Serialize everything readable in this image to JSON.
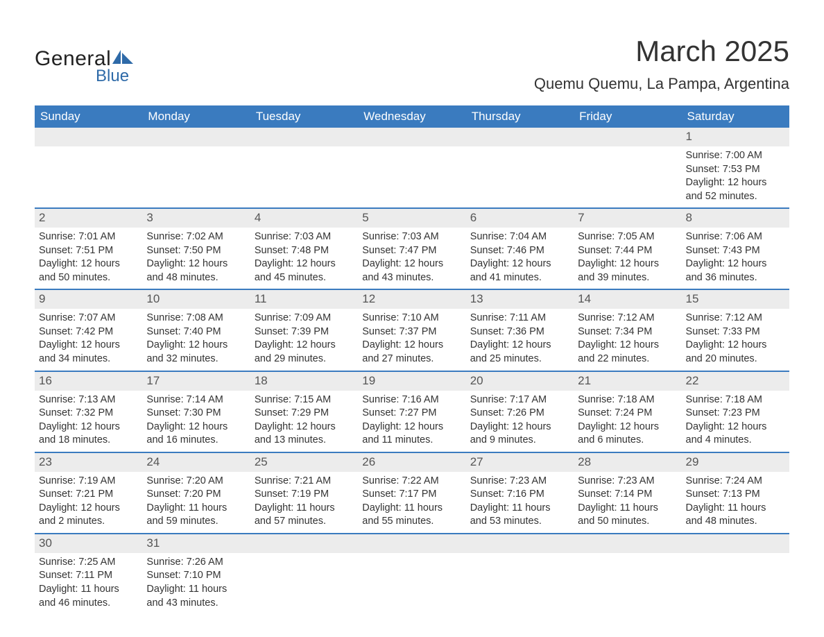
{
  "brand": {
    "general": "General",
    "blue": "Blue",
    "shape_color": "#2e6aa8"
  },
  "title": "March 2025",
  "location": "Quemu Quemu, La Pampa, Argentina",
  "colors": {
    "header_bg": "#3a7bbf",
    "header_text": "#ffffff",
    "daynum_bg": "#ececec",
    "border": "#3a7bbf",
    "text": "#333333"
  },
  "weekdays": [
    "Sunday",
    "Monday",
    "Tuesday",
    "Wednesday",
    "Thursday",
    "Friday",
    "Saturday"
  ],
  "weeks": [
    [
      null,
      null,
      null,
      null,
      null,
      null,
      {
        "n": "1",
        "sr": "Sunrise: 7:00 AM",
        "ss": "Sunset: 7:53 PM",
        "d1": "Daylight: 12 hours",
        "d2": "and 52 minutes."
      }
    ],
    [
      {
        "n": "2",
        "sr": "Sunrise: 7:01 AM",
        "ss": "Sunset: 7:51 PM",
        "d1": "Daylight: 12 hours",
        "d2": "and 50 minutes."
      },
      {
        "n": "3",
        "sr": "Sunrise: 7:02 AM",
        "ss": "Sunset: 7:50 PM",
        "d1": "Daylight: 12 hours",
        "d2": "and 48 minutes."
      },
      {
        "n": "4",
        "sr": "Sunrise: 7:03 AM",
        "ss": "Sunset: 7:48 PM",
        "d1": "Daylight: 12 hours",
        "d2": "and 45 minutes."
      },
      {
        "n": "5",
        "sr": "Sunrise: 7:03 AM",
        "ss": "Sunset: 7:47 PM",
        "d1": "Daylight: 12 hours",
        "d2": "and 43 minutes."
      },
      {
        "n": "6",
        "sr": "Sunrise: 7:04 AM",
        "ss": "Sunset: 7:46 PM",
        "d1": "Daylight: 12 hours",
        "d2": "and 41 minutes."
      },
      {
        "n": "7",
        "sr": "Sunrise: 7:05 AM",
        "ss": "Sunset: 7:44 PM",
        "d1": "Daylight: 12 hours",
        "d2": "and 39 minutes."
      },
      {
        "n": "8",
        "sr": "Sunrise: 7:06 AM",
        "ss": "Sunset: 7:43 PM",
        "d1": "Daylight: 12 hours",
        "d2": "and 36 minutes."
      }
    ],
    [
      {
        "n": "9",
        "sr": "Sunrise: 7:07 AM",
        "ss": "Sunset: 7:42 PM",
        "d1": "Daylight: 12 hours",
        "d2": "and 34 minutes."
      },
      {
        "n": "10",
        "sr": "Sunrise: 7:08 AM",
        "ss": "Sunset: 7:40 PM",
        "d1": "Daylight: 12 hours",
        "d2": "and 32 minutes."
      },
      {
        "n": "11",
        "sr": "Sunrise: 7:09 AM",
        "ss": "Sunset: 7:39 PM",
        "d1": "Daylight: 12 hours",
        "d2": "and 29 minutes."
      },
      {
        "n": "12",
        "sr": "Sunrise: 7:10 AM",
        "ss": "Sunset: 7:37 PM",
        "d1": "Daylight: 12 hours",
        "d2": "and 27 minutes."
      },
      {
        "n": "13",
        "sr": "Sunrise: 7:11 AM",
        "ss": "Sunset: 7:36 PM",
        "d1": "Daylight: 12 hours",
        "d2": "and 25 minutes."
      },
      {
        "n": "14",
        "sr": "Sunrise: 7:12 AM",
        "ss": "Sunset: 7:34 PM",
        "d1": "Daylight: 12 hours",
        "d2": "and 22 minutes."
      },
      {
        "n": "15",
        "sr": "Sunrise: 7:12 AM",
        "ss": "Sunset: 7:33 PM",
        "d1": "Daylight: 12 hours",
        "d2": "and 20 minutes."
      }
    ],
    [
      {
        "n": "16",
        "sr": "Sunrise: 7:13 AM",
        "ss": "Sunset: 7:32 PM",
        "d1": "Daylight: 12 hours",
        "d2": "and 18 minutes."
      },
      {
        "n": "17",
        "sr": "Sunrise: 7:14 AM",
        "ss": "Sunset: 7:30 PM",
        "d1": "Daylight: 12 hours",
        "d2": "and 16 minutes."
      },
      {
        "n": "18",
        "sr": "Sunrise: 7:15 AM",
        "ss": "Sunset: 7:29 PM",
        "d1": "Daylight: 12 hours",
        "d2": "and 13 minutes."
      },
      {
        "n": "19",
        "sr": "Sunrise: 7:16 AM",
        "ss": "Sunset: 7:27 PM",
        "d1": "Daylight: 12 hours",
        "d2": "and 11 minutes."
      },
      {
        "n": "20",
        "sr": "Sunrise: 7:17 AM",
        "ss": "Sunset: 7:26 PM",
        "d1": "Daylight: 12 hours",
        "d2": "and 9 minutes."
      },
      {
        "n": "21",
        "sr": "Sunrise: 7:18 AM",
        "ss": "Sunset: 7:24 PM",
        "d1": "Daylight: 12 hours",
        "d2": "and 6 minutes."
      },
      {
        "n": "22",
        "sr": "Sunrise: 7:18 AM",
        "ss": "Sunset: 7:23 PM",
        "d1": "Daylight: 12 hours",
        "d2": "and 4 minutes."
      }
    ],
    [
      {
        "n": "23",
        "sr": "Sunrise: 7:19 AM",
        "ss": "Sunset: 7:21 PM",
        "d1": "Daylight: 12 hours",
        "d2": "and 2 minutes."
      },
      {
        "n": "24",
        "sr": "Sunrise: 7:20 AM",
        "ss": "Sunset: 7:20 PM",
        "d1": "Daylight: 11 hours",
        "d2": "and 59 minutes."
      },
      {
        "n": "25",
        "sr": "Sunrise: 7:21 AM",
        "ss": "Sunset: 7:19 PM",
        "d1": "Daylight: 11 hours",
        "d2": "and 57 minutes."
      },
      {
        "n": "26",
        "sr": "Sunrise: 7:22 AM",
        "ss": "Sunset: 7:17 PM",
        "d1": "Daylight: 11 hours",
        "d2": "and 55 minutes."
      },
      {
        "n": "27",
        "sr": "Sunrise: 7:23 AM",
        "ss": "Sunset: 7:16 PM",
        "d1": "Daylight: 11 hours",
        "d2": "and 53 minutes."
      },
      {
        "n": "28",
        "sr": "Sunrise: 7:23 AM",
        "ss": "Sunset: 7:14 PM",
        "d1": "Daylight: 11 hours",
        "d2": "and 50 minutes."
      },
      {
        "n": "29",
        "sr": "Sunrise: 7:24 AM",
        "ss": "Sunset: 7:13 PM",
        "d1": "Daylight: 11 hours",
        "d2": "and 48 minutes."
      }
    ],
    [
      {
        "n": "30",
        "sr": "Sunrise: 7:25 AM",
        "ss": "Sunset: 7:11 PM",
        "d1": "Daylight: 11 hours",
        "d2": "and 46 minutes."
      },
      {
        "n": "31",
        "sr": "Sunrise: 7:26 AM",
        "ss": "Sunset: 7:10 PM",
        "d1": "Daylight: 11 hours",
        "d2": "and 43 minutes."
      },
      null,
      null,
      null,
      null,
      null
    ]
  ]
}
